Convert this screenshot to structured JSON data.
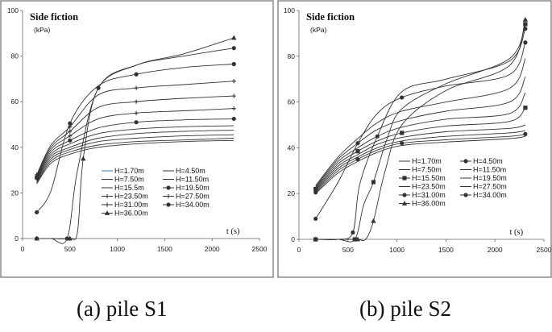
{
  "colors": {
    "line": "#333333",
    "frame": "#8a8a8a",
    "background": "#ffffff",
    "highlight_series": "#2e75b6"
  },
  "captions": {
    "left": "(a) pile S1",
    "right": "(b) pile S2"
  },
  "chart_data": [
    {
      "type": "line",
      "title": "Side fiction",
      "unit": "(kPa)",
      "xlabel": "t (s)",
      "xlim": [
        0,
        2500
      ],
      "ylim": [
        0,
        100
      ],
      "xticks": [
        0,
        500,
        1000,
        1500,
        2000,
        2500
      ],
      "yticks": [
        0,
        20,
        40,
        60,
        80,
        100
      ],
      "grid": false,
      "legend_position": "center-right",
      "series": [
        {
          "name": "H=1.70m",
          "marker": "none",
          "points": [
            [
              150,
              24
            ],
            [
              300,
              33
            ],
            [
              500,
              37
            ],
            [
              800,
              40
            ],
            [
              1200,
              41.5
            ],
            [
              1700,
              42.5
            ],
            [
              2230,
              43
            ]
          ]
        },
        {
          "name": "H=4.50m",
          "marker": "none",
          "points": [
            [
              150,
              24.5
            ],
            [
              300,
              34
            ],
            [
              500,
              38
            ],
            [
              800,
              41
            ],
            [
              1200,
              42.5
            ],
            [
              1700,
              43.2
            ],
            [
              2230,
              44
            ]
          ]
        },
        {
          "name": "H=7.50m",
          "marker": "none",
          "points": [
            [
              150,
              25
            ],
            [
              300,
              35
            ],
            [
              500,
              39
            ],
            [
              800,
              42.5
            ],
            [
              1200,
              44
            ],
            [
              1700,
              45
            ],
            [
              2230,
              45.5
            ]
          ]
        },
        {
          "name": "H=11.50m",
          "marker": "none",
          "points": [
            [
              150,
              25.5
            ],
            [
              300,
              36
            ],
            [
              500,
              40
            ],
            [
              800,
              44
            ],
            [
              1200,
              46
            ],
            [
              1700,
              47
            ],
            [
              2230,
              47.5
            ]
          ]
        },
        {
          "name": "H=15.5m",
          "marker": "none",
          "points": [
            [
              150,
              26
            ],
            [
              300,
              37
            ],
            [
              500,
              41.5
            ],
            [
              800,
              46
            ],
            [
              1200,
              48
            ],
            [
              1700,
              49
            ],
            [
              2230,
              49.5
            ]
          ]
        },
        {
          "name": "H=19.50m",
          "marker": "dot",
          "points": [
            [
              150,
              26.5
            ],
            [
              300,
              38
            ],
            [
              500,
              43
            ],
            [
              800,
              48.5
            ],
            [
              1200,
              51
            ],
            [
              1700,
              52
            ],
            [
              2230,
              52.5
            ]
          ]
        },
        {
          "name": "H=23.50m",
          "marker": "plus",
          "points": [
            [
              150,
              27
            ],
            [
              300,
              39
            ],
            [
              500,
              45
            ],
            [
              800,
              52.5
            ],
            [
              1200,
              55
            ],
            [
              1700,
              56
            ],
            [
              2230,
              57
            ]
          ]
        },
        {
          "name": "H=27.50m",
          "marker": "plus",
          "points": [
            [
              150,
              27.5
            ],
            [
              300,
              40
            ],
            [
              500,
              47
            ],
            [
              800,
              57.5
            ],
            [
              1200,
              60
            ],
            [
              1700,
              61.5
            ],
            [
              2230,
              62.5
            ]
          ]
        },
        {
          "name": "H=31.00m",
          "marker": "plus",
          "points": [
            [
              150,
              28
            ],
            [
              300,
              41
            ],
            [
              500,
              49
            ],
            [
              800,
              63
            ],
            [
              1200,
              66
            ],
            [
              1700,
              67.5
            ],
            [
              2230,
              69
            ]
          ]
        },
        {
          "name": "H=34.00m",
          "marker": "dot",
          "points": [
            [
              150,
              11.5
            ],
            [
              300,
              21
            ],
            [
              500,
              50.5
            ],
            [
              800,
              67
            ],
            [
              1200,
              72
            ],
            [
              1700,
              75
            ],
            [
              2230,
              76.5
            ]
          ]
        },
        {
          "name": "",
          "marker": "dot",
          "points": [
            [
              150,
              0
            ],
            [
              300,
              0
            ],
            [
              470,
              0
            ],
            [
              580,
              30
            ],
            [
              800,
              66
            ],
            [
              1200,
              76
            ],
            [
              1700,
              80
            ],
            [
              2230,
              83.5
            ]
          ]
        },
        {
          "name": "H=36.00m",
          "marker": "triangle",
          "points": [
            [
              150,
              0
            ],
            [
              300,
              0
            ],
            [
              500,
              0
            ],
            [
              580,
              3
            ],
            [
              640,
              35
            ],
            [
              800,
              66
            ],
            [
              1200,
              76
            ],
            [
              1700,
              81
            ],
            [
              2230,
              88
            ]
          ]
        }
      ]
    },
    {
      "type": "line",
      "title": "Side fiction",
      "unit": "(kPa)",
      "xlabel": "t (s)",
      "xlim": [
        0,
        2500
      ],
      "ylim": [
        0,
        100
      ],
      "xticks": [
        0,
        500,
        1000,
        1500,
        2000,
        2500
      ],
      "yticks": [
        0,
        20,
        40,
        60,
        80,
        100
      ],
      "grid": false,
      "legend_position": "center-right",
      "series": [
        {
          "name": "H=1.70m",
          "marker": "none",
          "points": [
            [
              170,
              20
            ],
            [
              400,
              29
            ],
            [
              600,
              34
            ],
            [
              800,
              38
            ],
            [
              1050,
              41
            ],
            [
              1500,
              42.5
            ],
            [
              2150,
              44
            ],
            [
              2310,
              45
            ]
          ]
        },
        {
          "name": "H=4.50m",
          "marker": "dot",
          "points": [
            [
              170,
              20.5
            ],
            [
              400,
              30
            ],
            [
              600,
              35
            ],
            [
              800,
              39
            ],
            [
              1050,
              42
            ],
            [
              1500,
              43.5
            ],
            [
              2150,
              45
            ],
            [
              2310,
              46
            ]
          ]
        },
        {
          "name": "H=7.50m",
          "marker": "none",
          "points": [
            [
              170,
              21
            ],
            [
              400,
              31
            ],
            [
              600,
              36
            ],
            [
              800,
              40
            ],
            [
              1050,
              43
            ],
            [
              1500,
              45
            ],
            [
              2150,
              46.5
            ],
            [
              2310,
              47.5
            ]
          ]
        },
        {
          "name": "H=11.50m",
          "marker": "none",
          "points": [
            [
              170,
              21.5
            ],
            [
              400,
              32
            ],
            [
              600,
              37
            ],
            [
              800,
              41.5
            ],
            [
              1050,
              44.5
            ],
            [
              1500,
              47
            ],
            [
              2150,
              48.5
            ],
            [
              2310,
              50
            ]
          ]
        },
        {
          "name": "H=15.50m",
          "marker": "square",
          "points": [
            [
              170,
              22
            ],
            [
              400,
              33
            ],
            [
              600,
              38.5
            ],
            [
              800,
              43
            ],
            [
              1050,
              46.5
            ],
            [
              1500,
              49.5
            ],
            [
              2150,
              51.5
            ],
            [
              2310,
              57.5
            ]
          ]
        },
        {
          "name": "H=19.50m",
          "marker": "none",
          "points": [
            [
              170,
              22.5
            ],
            [
              400,
              34
            ],
            [
              600,
              40
            ],
            [
              800,
              45
            ],
            [
              1050,
              49
            ],
            [
              1500,
              52.5
            ],
            [
              2150,
              55
            ],
            [
              2310,
              64
            ]
          ]
        },
        {
          "name": "H=23.50m",
          "marker": "none",
          "points": [
            [
              170,
              23
            ],
            [
              400,
              35
            ],
            [
              600,
              42
            ],
            [
              800,
              48
            ],
            [
              1050,
              52
            ],
            [
              1500,
              56
            ],
            [
              2150,
              60
            ],
            [
              2310,
              71
            ]
          ]
        },
        {
          "name": "H=27.50m",
          "marker": "none",
          "points": [
            [
              170,
              23.5
            ],
            [
              400,
              36
            ],
            [
              600,
              44
            ],
            [
              800,
              51
            ],
            [
              1050,
              56
            ],
            [
              1500,
              60
            ],
            [
              2150,
              66
            ],
            [
              2310,
              79
            ]
          ]
        },
        {
          "name": "H=31.00m",
          "marker": "dot",
          "points": [
            [
              170,
              9
            ],
            [
              400,
              25
            ],
            [
              600,
              42
            ],
            [
              800,
              55
            ],
            [
              1050,
              62
            ],
            [
              1500,
              67
            ],
            [
              2150,
              72
            ],
            [
              2310,
              86
            ]
          ]
        },
        {
          "name": "H=34.00m",
          "marker": "dot",
          "points": [
            [
              170,
              0
            ],
            [
              400,
              0
            ],
            [
              550,
              3
            ],
            [
              620,
              24
            ],
            [
              800,
              45
            ],
            [
              1050,
              64.5
            ],
            [
              1500,
              70
            ],
            [
              2150,
              78
            ],
            [
              2310,
              92
            ]
          ]
        },
        {
          "name": "",
          "marker": "square",
          "points": [
            [
              170,
              0
            ],
            [
              400,
              0
            ],
            [
              570,
              0
            ],
            [
              660,
              15
            ],
            [
              760,
              25
            ],
            [
              900,
              44
            ],
            [
              1050,
              57
            ],
            [
              1500,
              68
            ],
            [
              2150,
              79
            ],
            [
              2310,
              94
            ]
          ]
        },
        {
          "name": "H=36.00m",
          "marker": "triangle",
          "points": [
            [
              170,
              0
            ],
            [
              400,
              0
            ],
            [
              600,
              0
            ],
            [
              680,
              0
            ],
            [
              760,
              8
            ],
            [
              880,
              30
            ],
            [
              1050,
              50
            ],
            [
              1500,
              65
            ],
            [
              2150,
              76
            ],
            [
              2310,
              96
            ]
          ]
        }
      ]
    }
  ]
}
